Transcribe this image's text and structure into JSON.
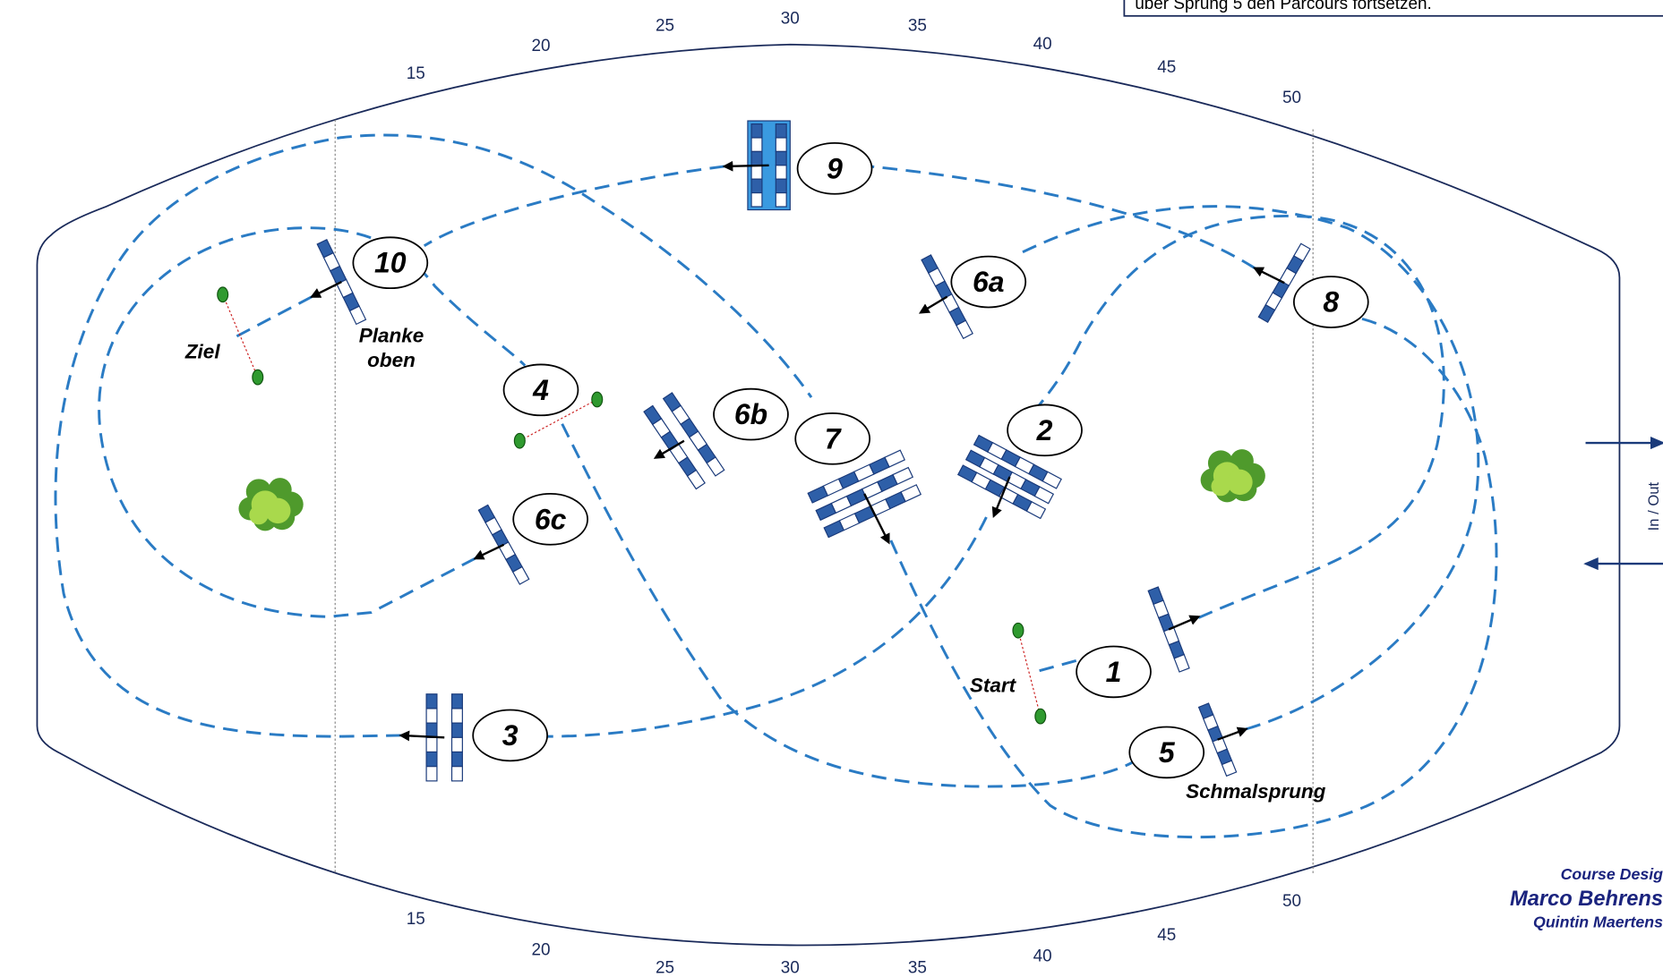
{
  "note": "über Sprung 5 den Parcours fortsetzen.",
  "ruler": {
    "top": [
      "15",
      "20",
      "25",
      "30",
      "35",
      "40",
      "45",
      "50"
    ],
    "bottom": [
      "15",
      "20",
      "25",
      "30",
      "35",
      "40",
      "45",
      "50"
    ]
  },
  "jumps": [
    "1",
    "2",
    "3",
    "4",
    "5",
    "6a",
    "6b",
    "6c",
    "7",
    "8",
    "9",
    "10"
  ],
  "annotations": {
    "start": "Start",
    "finish": "Ziel",
    "plank": [
      "Planke",
      "oben"
    ],
    "narrow": "Schmalsprung",
    "gate": "In / Out"
  },
  "credits": [
    "Course Desig",
    "Marco Behrens",
    "Quintin Maertens"
  ]
}
